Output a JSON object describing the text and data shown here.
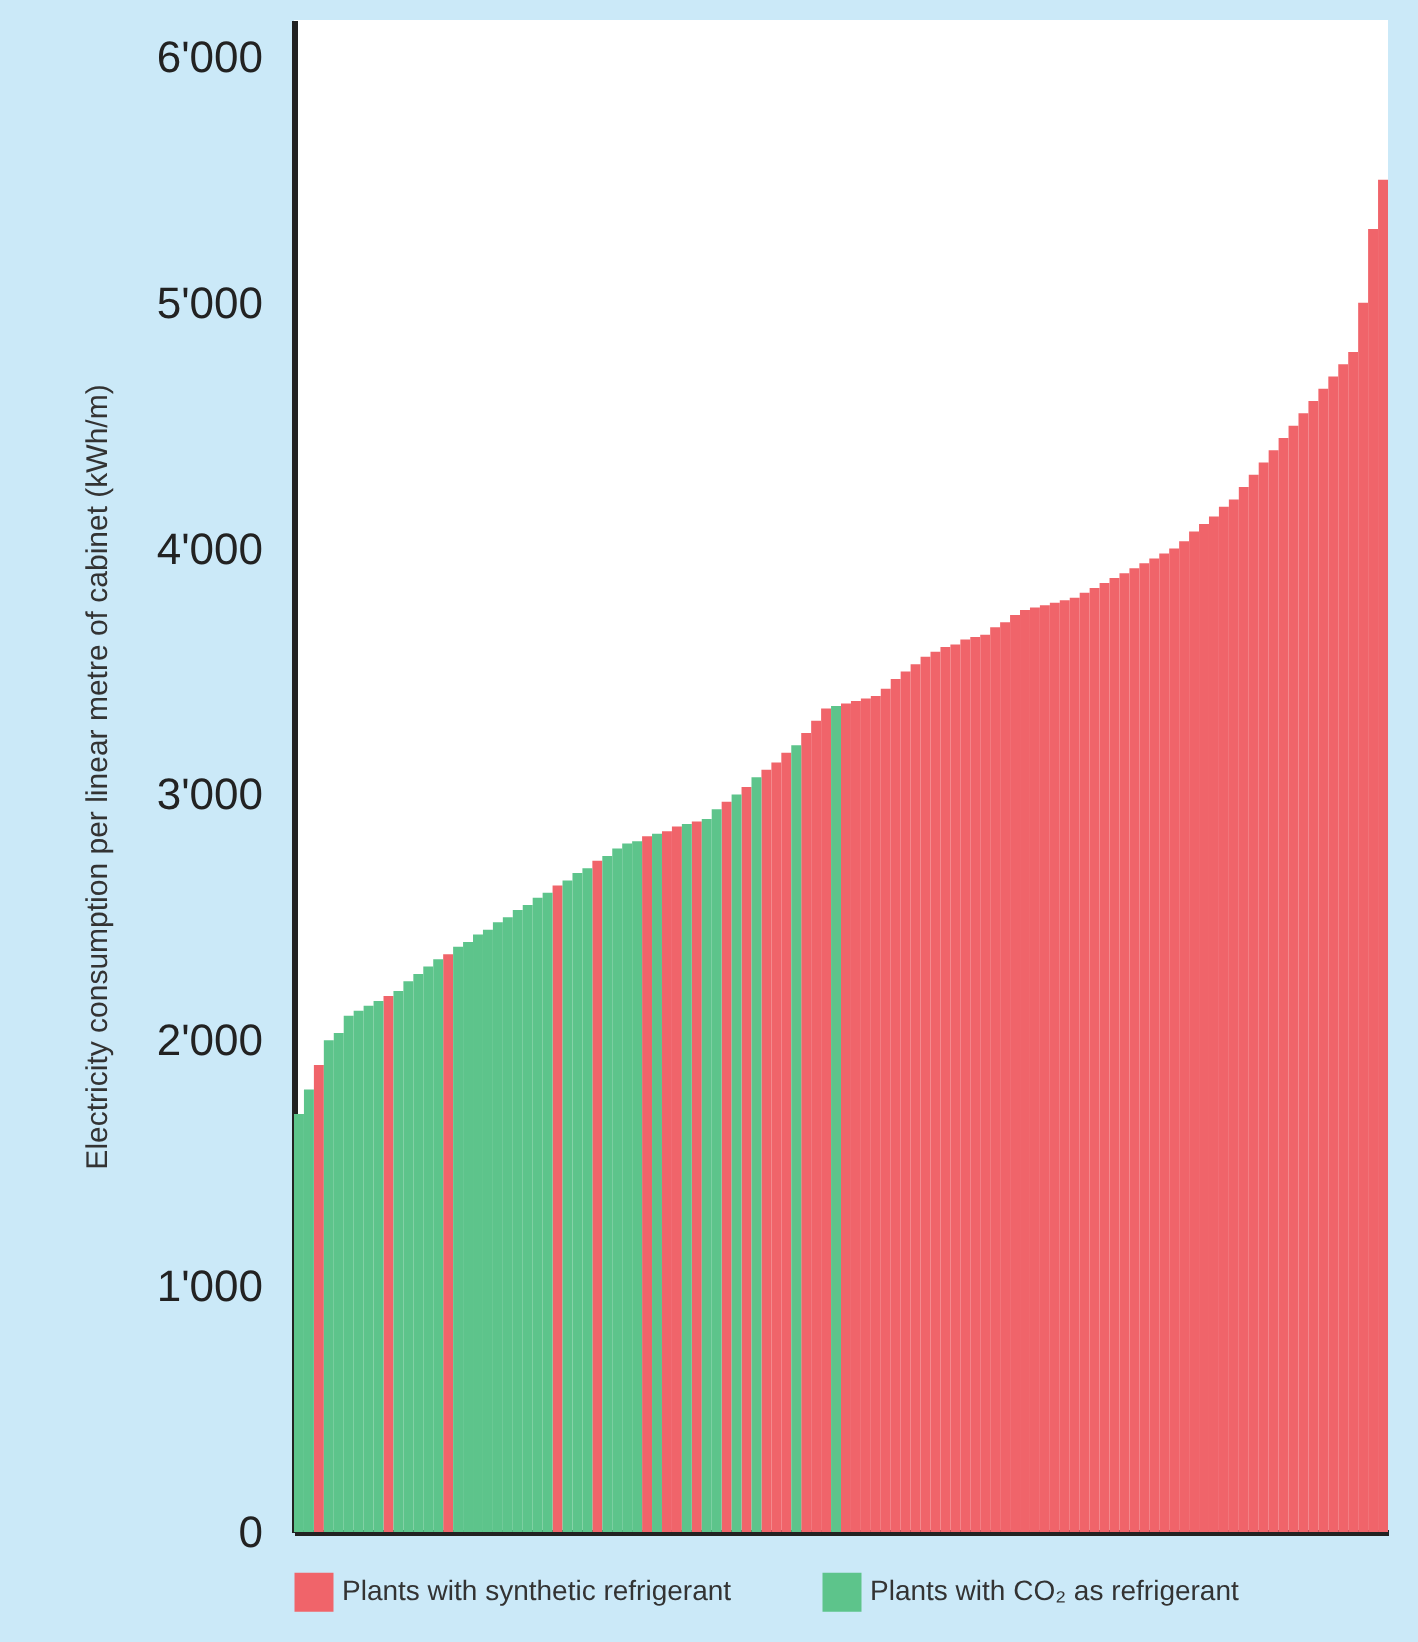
{
  "chart_data": {
    "type": "bar",
    "ylabel": "Electricity consumption per linear metre of cabinet (kWh/m)",
    "categories": [
      null,
      null,
      null,
      null,
      null,
      null,
      null,
      null,
      null,
      null,
      null,
      null,
      null,
      null,
      null,
      null,
      null,
      null,
      null,
      null,
      null,
      null,
      null,
      null,
      null,
      null,
      null,
      null,
      null,
      null,
      null,
      null,
      null,
      null,
      null,
      null,
      null,
      null,
      null,
      null,
      null,
      null,
      null,
      null,
      null,
      null,
      null,
      null,
      null,
      null,
      null,
      null,
      null,
      null,
      null,
      null,
      null,
      null,
      null,
      null,
      null,
      null,
      null,
      null,
      null,
      null,
      null,
      null,
      null,
      null,
      null,
      null,
      null,
      null,
      null,
      null,
      null,
      null,
      null,
      null,
      null,
      null,
      null,
      null,
      null,
      null,
      null,
      null,
      null,
      null,
      null,
      null,
      null,
      null,
      null,
      null,
      null,
      null,
      null,
      null,
      null,
      null,
      null,
      null,
      null,
      null,
      null,
      null,
      null,
      null
    ],
    "series": [
      {
        "name": "Plants with synthetic refrigerant",
        "color": "#f0646a",
        "values": [
          null,
          null,
          1900,
          null,
          null,
          null,
          null,
          null,
          null,
          2180,
          null,
          null,
          null,
          null,
          null,
          2350,
          null,
          null,
          null,
          null,
          null,
          null,
          null,
          null,
          null,
          null,
          2630,
          null,
          null,
          null,
          2730,
          null,
          null,
          null,
          null,
          2830,
          null,
          2850,
          2870,
          null,
          2890,
          null,
          null,
          2970,
          null,
          3030,
          null,
          3100,
          3130,
          3170,
          null,
          3250,
          3300,
          3350,
          null,
          3370,
          3380,
          3390,
          3400,
          3430,
          3470,
          3500,
          3530,
          3560,
          3580,
          3600,
          3610,
          3630,
          3640,
          3650,
          3680,
          3700,
          3730,
          3750,
          3760,
          3770,
          3780,
          3790,
          3800,
          3820,
          3840,
          3860,
          3880,
          3900,
          3920,
          3940,
          3960,
          3980,
          4000,
          4030,
          4070,
          4100,
          4130,
          4170,
          4200,
          4250,
          4300,
          4350,
          4400,
          4450,
          4500,
          4550,
          4600,
          4650,
          4700,
          4750,
          4800,
          5000,
          5300,
          5500
        ]
      },
      {
        "name": "Plants with CO₂ as refrigerant",
        "color": "#5dc48b",
        "values": [
          1700,
          1800,
          null,
          2000,
          2030,
          2100,
          2120,
          2140,
          2160,
          null,
          2200,
          2240,
          2270,
          2300,
          2330,
          null,
          2380,
          2400,
          2430,
          2450,
          2480,
          2500,
          2530,
          2550,
          2580,
          2600,
          null,
          2650,
          2680,
          2700,
          null,
          2750,
          2780,
          2800,
          2810,
          null,
          2840,
          null,
          null,
          2880,
          null,
          2900,
          2940,
          null,
          3000,
          null,
          3070,
          null,
          null,
          null,
          3200,
          null,
          null,
          null,
          3360,
          null,
          null,
          null,
          null,
          null,
          null,
          null,
          null,
          null,
          null,
          null,
          null,
          null,
          null,
          null,
          null,
          null,
          null,
          null,
          null,
          null,
          null,
          null,
          null,
          null,
          null,
          null,
          null,
          null,
          null,
          null,
          null,
          null,
          null,
          null,
          null,
          null,
          null,
          null,
          null,
          null,
          null,
          null,
          null,
          null,
          null,
          null,
          null,
          null,
          null,
          null,
          null,
          null,
          null,
          null
        ]
      }
    ],
    "ylim": [
      0,
      6150
    ],
    "yticks": [
      0,
      {
        "value": 1000,
        "label": "1'000"
      },
      {
        "value": 2000,
        "label": "2'000"
      },
      {
        "value": 3000,
        "label": "3'000"
      },
      {
        "value": 4000,
        "label": "4'000"
      },
      {
        "value": 5000,
        "label": "5'000"
      },
      {
        "value": 6000,
        "label": "6'000"
      }
    ],
    "tick_labels": "y",
    "legend": "bottom"
  }
}
